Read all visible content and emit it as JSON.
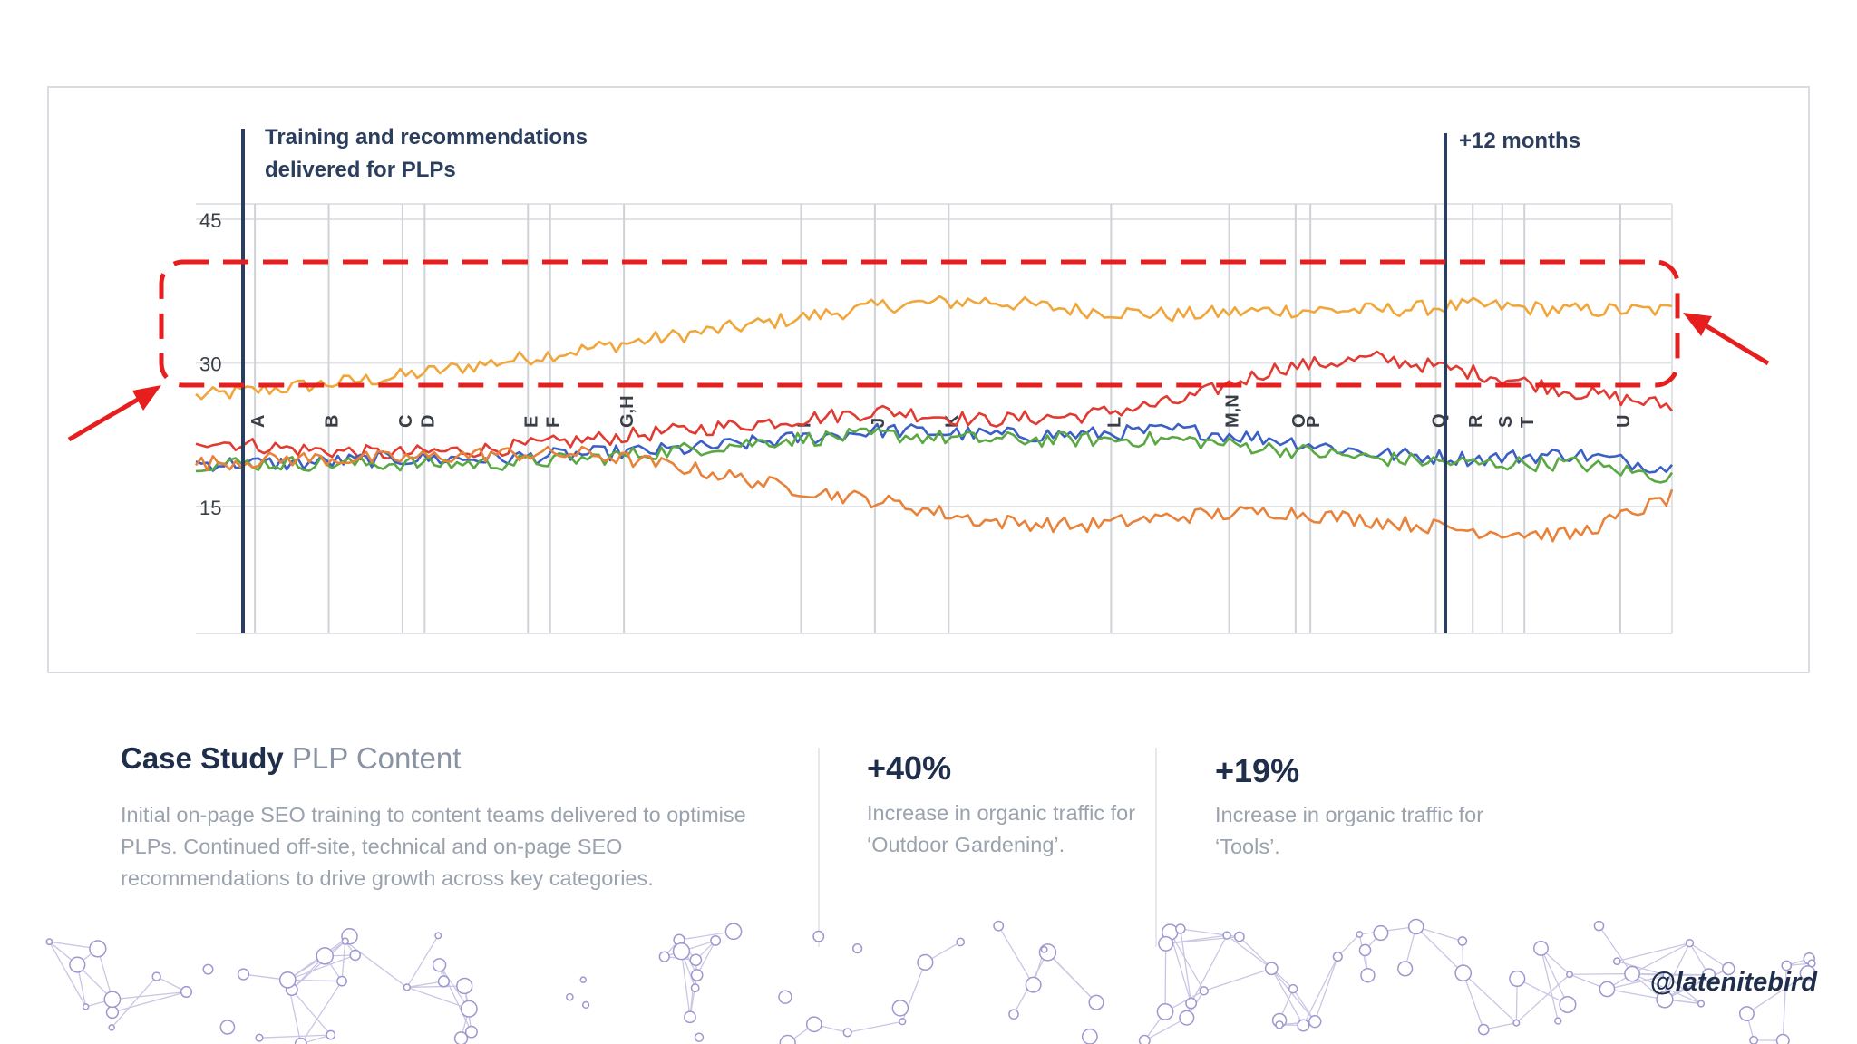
{
  "annotations": {
    "training_label_line1": "Training and recommendations",
    "training_label_line2": "delivered for PLPs",
    "plus12_label": "+12 months"
  },
  "case_study": {
    "title_bold": "Case Study",
    "title_light": "PLP Content",
    "body": "Initial on-page SEO training to content teams delivered to optimise PLPs. Continued off-site, technical and on-page SEO recommendations to drive growth across key categories."
  },
  "stats": [
    {
      "value": "+40%",
      "description": "Increase in organic traffic for ‘Outdoor Gardening’."
    },
    {
      "value": "+19%",
      "description": "Increase in organic traffic for ‘Tools’."
    }
  ],
  "handle": "@latenitebird",
  "chart_data": {
    "type": "line",
    "y_ticks": [
      "45",
      "30",
      "15"
    ],
    "ylim": [
      0,
      45
    ],
    "grid": true,
    "event_markers": [
      "A",
      "B",
      "C",
      "D",
      "E",
      "F",
      "G,H",
      "I",
      "J",
      "K",
      "L",
      "M,N",
      "O",
      "P",
      "Q",
      "R",
      "S",
      "T",
      "U"
    ],
    "event_positions": [
      0.04,
      0.09,
      0.14,
      0.155,
      0.225,
      0.24,
      0.29,
      0.41,
      0.46,
      0.51,
      0.62,
      0.7,
      0.745,
      0.755,
      0.84,
      0.865,
      0.885,
      0.9,
      0.965
    ],
    "series": [
      {
        "color": "#f0a63a",
        "values": [
          26.5,
          27.5,
          28.5,
          30,
          31.5,
          33,
          34.5,
          36,
          36.5,
          35.5,
          35,
          35.5,
          35.5,
          36,
          35.5,
          35.5
        ]
      },
      {
        "color": "#e03b32",
        "values": [
          22,
          21,
          20.5,
          21,
          22,
          23,
          24,
          25,
          24,
          24.5,
          26,
          29.5,
          30.5,
          29,
          27,
          25.5
        ]
      },
      {
        "color": "#3b5fc4",
        "values": [
          19.5,
          19.5,
          20,
          20,
          20.5,
          21,
          22,
          23,
          22.5,
          22.5,
          23,
          22,
          20.5,
          20,
          20.5,
          19
        ]
      },
      {
        "color": "#5aa842",
        "values": [
          19.5,
          19.5,
          19.5,
          19.5,
          20,
          21,
          22,
          22.5,
          22,
          22,
          22,
          21,
          20,
          19.5,
          19.5,
          18
        ]
      },
      {
        "color": "#e8823a",
        "values": [
          19.5,
          20,
          20,
          20.5,
          20.5,
          19,
          17,
          15.5,
          13.5,
          13,
          14,
          14.5,
          13.5,
          12.5,
          12,
          16
        ]
      }
    ]
  }
}
